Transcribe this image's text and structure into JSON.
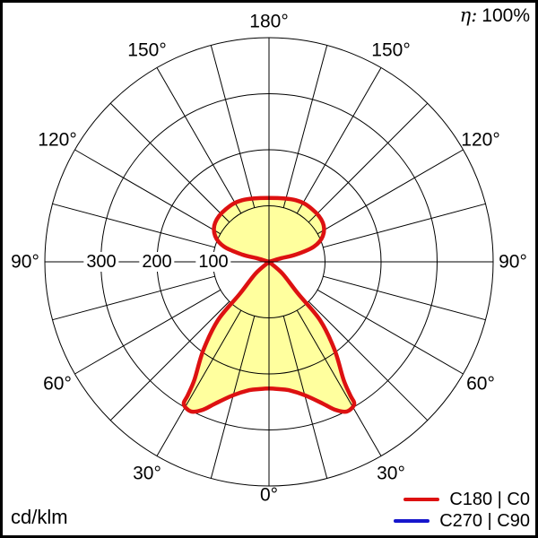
{
  "eta": {
    "symbol": "η:",
    "value": "100%"
  },
  "units_label": "cd/klm",
  "legend": [
    {
      "label": "C180 | C0",
      "color": "#dd1111"
    },
    {
      "label": "C270 | C90",
      "color": "#1616cc"
    }
  ],
  "chart_data": {
    "type": "polar_photometric",
    "units": "cd/klm",
    "efficiency_percent": 100,
    "angle_step_deg": 15,
    "radial_rings": [
      100,
      200,
      300,
      400
    ],
    "radial_tick_labels": [
      100,
      200,
      300
    ],
    "angle_labels": [
      {
        "label": "0°",
        "gamma": 0,
        "side": "center"
      },
      {
        "label": "30°",
        "gamma": 30,
        "side": "left"
      },
      {
        "label": "30°",
        "gamma": 30,
        "side": "right"
      },
      {
        "label": "60°",
        "gamma": 60,
        "side": "left"
      },
      {
        "label": "60°",
        "gamma": 60,
        "side": "right"
      },
      {
        "label": "90°",
        "gamma": 90,
        "side": "left"
      },
      {
        "label": "90°",
        "gamma": 90,
        "side": "right"
      },
      {
        "label": "120°",
        "gamma": 120,
        "side": "left"
      },
      {
        "label": "120°",
        "gamma": 120,
        "side": "right"
      },
      {
        "label": "150°",
        "gamma": 150,
        "side": "left"
      },
      {
        "label": "150°",
        "gamma": 150,
        "side": "right"
      },
      {
        "label": "180°",
        "gamma": 180,
        "side": "center"
      }
    ],
    "fill_color": "#ffff9e",
    "series": [
      {
        "name": "C180 | C0",
        "color": "#dd1111",
        "upper_lobe_points": [
          [
            0,
            0
          ],
          [
            -20,
            -6
          ],
          [
            -48,
            -13
          ],
          [
            -80,
            -27
          ],
          [
            -96,
            -46
          ],
          [
            -96,
            -70
          ],
          [
            -77,
            -94
          ],
          [
            -48,
            -110
          ],
          [
            0,
            -114
          ],
          [
            48,
            -110
          ],
          [
            77,
            -94
          ],
          [
            96,
            -70
          ],
          [
            96,
            -46
          ],
          [
            80,
            -27
          ],
          [
            48,
            -13
          ],
          [
            20,
            -6
          ],
          [
            0,
            0
          ]
        ],
        "lower_lobe_points": [
          [
            0,
            0
          ],
          [
            24,
            21
          ],
          [
            52,
            57
          ],
          [
            91,
            104
          ],
          [
            117,
            157
          ],
          [
            133,
            210
          ],
          [
            145,
            238
          ],
          [
            152,
            254
          ],
          [
            139,
            267
          ],
          [
            118,
            264
          ],
          [
            96,
            253
          ],
          [
            64,
            238
          ],
          [
            35,
            229
          ],
          [
            17,
            227
          ],
          [
            0,
            226
          ],
          [
            -17,
            227
          ],
          [
            -35,
            229
          ],
          [
            -64,
            238
          ],
          [
            -96,
            253
          ],
          [
            -118,
            264
          ],
          [
            -139,
            267
          ],
          [
            -152,
            254
          ],
          [
            -145,
            238
          ],
          [
            -133,
            210
          ],
          [
            -117,
            157
          ],
          [
            -91,
            104
          ],
          [
            -52,
            57
          ],
          [
            -24,
            21
          ],
          [
            0,
            0
          ]
        ]
      },
      {
        "name": "C270 | C90",
        "color": "#1616cc",
        "coincides_with_series": 0
      }
    ]
  }
}
